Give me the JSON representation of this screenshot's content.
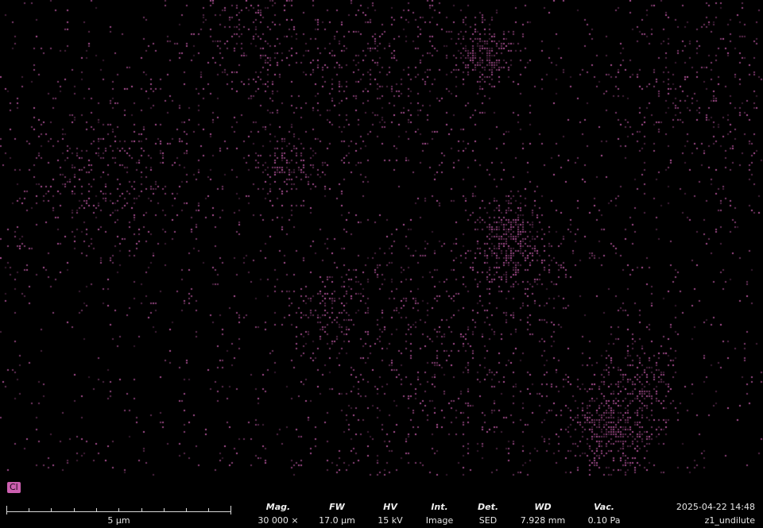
{
  "image": {
    "element_label": "Cl",
    "map_color": "#cc5fb0",
    "background_color": "#000000"
  },
  "scalebar": {
    "label": "5 µm"
  },
  "acquisition": [
    {
      "key": "mag",
      "label": "Mag.",
      "value": "30 000 ×"
    },
    {
      "key": "fw",
      "label": "FW",
      "value": "17.0 µm"
    },
    {
      "key": "hv",
      "label": "HV",
      "value": "15 kV"
    },
    {
      "key": "int",
      "label": "Int.",
      "value": "Image"
    },
    {
      "key": "det",
      "label": "Det.",
      "value": "SED"
    },
    {
      "key": "wd",
      "label": "WD",
      "value": "7.928 mm"
    },
    {
      "key": "vac",
      "label": "Vac.",
      "value": "0.10 Pa"
    }
  ],
  "meta": {
    "datetime": "2025-04-22 14:48",
    "sample_name": "z1_undilute"
  }
}
